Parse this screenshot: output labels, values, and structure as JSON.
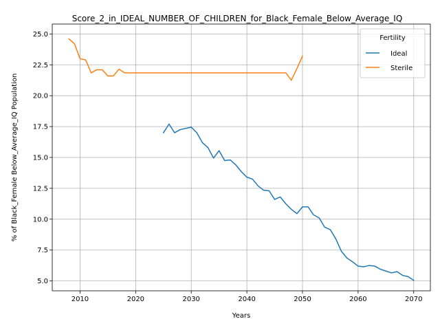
{
  "chart_data": {
    "type": "line",
    "title": "Score_2_in_IDEAL_NUMBER_OF_CHILDREN_for_Black_Female_Below_Average_IQ",
    "xlabel": "Years",
    "ylabel": "% of Black_Female Below_Average_IQ Population",
    "xlim": [
      2005,
      2073
    ],
    "ylim": [
      4.2,
      25.8
    ],
    "x_ticks": [
      "2010",
      "2020",
      "2030",
      "2040",
      "2050",
      "2060",
      "2070"
    ],
    "y_ticks": [
      "5.0",
      "7.5",
      "10.0",
      "12.5",
      "15.0",
      "17.5",
      "20.0",
      "22.5",
      "25.0"
    ],
    "grid": true,
    "legend": {
      "title": "Fertility",
      "placement": "top-right"
    },
    "series": [
      {
        "name": "Ideal",
        "color": "#1f77b4",
        "x": [
          2025,
          2026,
          2027,
          2028,
          2029,
          2030,
          2031,
          2032,
          2033,
          2034,
          2035,
          2036,
          2037,
          2038,
          2039,
          2040,
          2041,
          2042,
          2043,
          2044,
          2045,
          2046,
          2047,
          2048,
          2049,
          2050,
          2051,
          2052,
          2053,
          2054,
          2055,
          2056,
          2057,
          2058,
          2059,
          2060,
          2061,
          2062,
          2063,
          2064,
          2065,
          2066,
          2067,
          2068,
          2069,
          2070
        ],
        "y": [
          17.0,
          17.7,
          17.0,
          17.25,
          17.35,
          17.45,
          17.0,
          16.2,
          15.8,
          14.95,
          15.55,
          14.75,
          14.8,
          14.4,
          13.85,
          13.4,
          13.25,
          12.7,
          12.35,
          12.3,
          11.6,
          11.8,
          11.25,
          10.8,
          10.45,
          11.0,
          11.0,
          10.35,
          10.1,
          9.35,
          9.15,
          8.4,
          7.4,
          6.85,
          6.55,
          6.2,
          6.15,
          6.25,
          6.2,
          5.95,
          5.8,
          5.65,
          5.75,
          5.45,
          5.35,
          5.05
        ]
      },
      {
        "name": "Sterile",
        "color": "#ff7f0e",
        "x": [
          2008,
          2009,
          2010,
          2011,
          2012,
          2013,
          2014,
          2015,
          2016,
          2017,
          2018,
          2019,
          2020,
          2021,
          2022,
          2023,
          2024,
          2025,
          2026,
          2027,
          2028,
          2029,
          2030,
          2031,
          2032,
          2033,
          2034,
          2035,
          2036,
          2037,
          2038,
          2039,
          2040,
          2041,
          2042,
          2043,
          2044,
          2045,
          2046,
          2047,
          2048,
          2049,
          2050
        ],
        "y": [
          24.6,
          24.2,
          23.0,
          22.9,
          21.85,
          22.1,
          22.1,
          21.6,
          21.6,
          22.15,
          21.85,
          21.85,
          21.85,
          21.85,
          21.85,
          21.85,
          21.85,
          21.85,
          21.85,
          21.85,
          21.85,
          21.85,
          21.85,
          21.85,
          21.85,
          21.85,
          21.85,
          21.85,
          21.85,
          21.85,
          21.85,
          21.85,
          21.85,
          21.85,
          21.85,
          21.85,
          21.85,
          21.85,
          21.85,
          21.85,
          21.25,
          22.2,
          23.2
        ]
      }
    ]
  }
}
